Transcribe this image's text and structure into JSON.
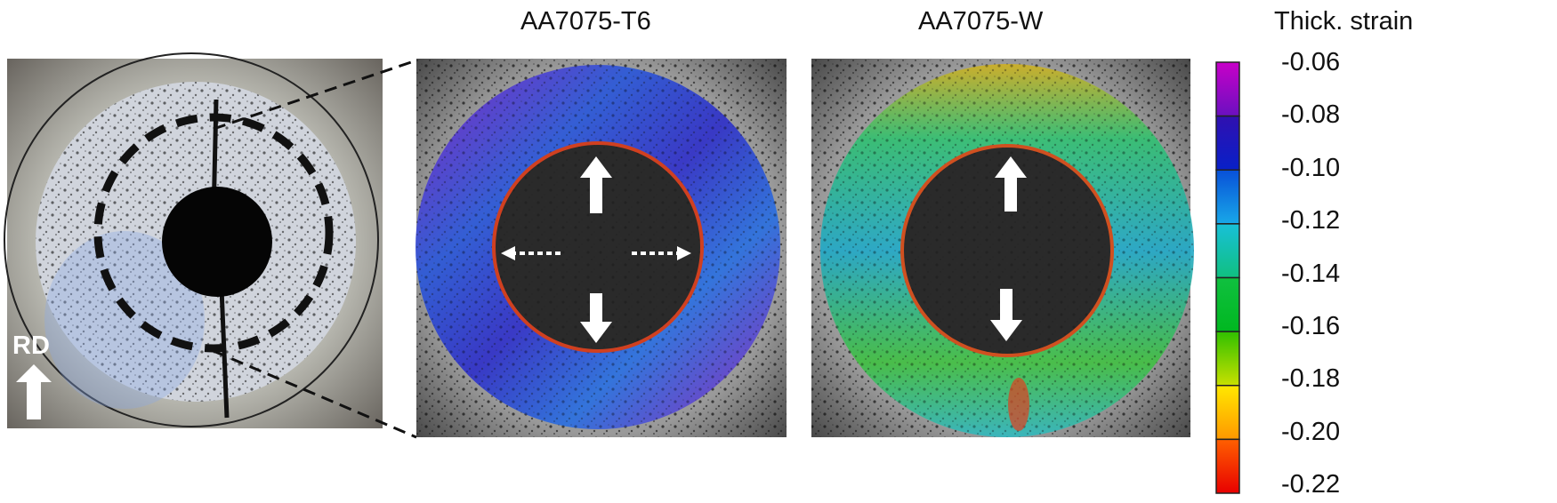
{
  "titles": {
    "left_panel": "AA7075-T6",
    "right_panel": "AA7075-W"
  },
  "photo": {
    "direction_label": "RD"
  },
  "colorbar": {
    "title": "Thick. strain",
    "ticks": [
      "-0.06",
      "-0.08",
      "-0.10",
      "-0.12",
      "-0.14",
      "-0.16",
      "-0.18",
      "-0.20",
      "-0.22"
    ],
    "band_colors": [
      [
        "#c800c8",
        "#6a10c0"
      ],
      [
        "#3010b0",
        "#0820c8"
      ],
      [
        "#0850d8",
        "#18a8e8"
      ],
      [
        "#18c0d8",
        "#10c080"
      ],
      [
        "#10c040",
        "#00b820"
      ],
      [
        "#30c000",
        "#c8e000"
      ],
      [
        "#ffe800",
        "#ff9800"
      ],
      [
        "#ff6000",
        "#e80000"
      ]
    ]
  },
  "colors": {
    "t6_ring": "#4a40d0",
    "w_ring": "#30c0a0"
  }
}
